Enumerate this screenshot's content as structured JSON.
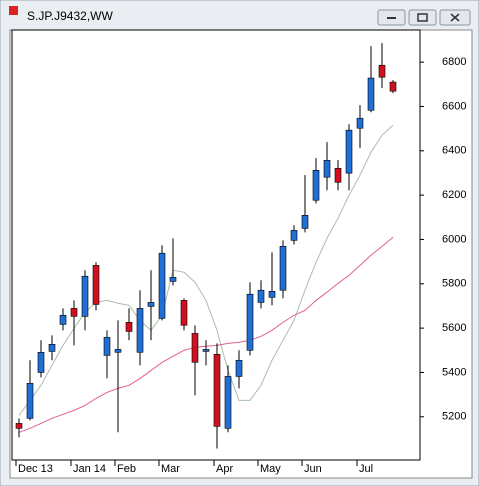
{
  "chart_data": {
    "type": "candlestick",
    "title": "S.JP.J9432,WW",
    "categories": [
      "Dec 13",
      null,
      null,
      null,
      null,
      "Jan 14",
      null,
      null,
      null,
      "Feb",
      null,
      null,
      null,
      "Mar",
      null,
      null,
      null,
      null,
      "Apr",
      null,
      null,
      null,
      "May",
      null,
      null,
      null,
      "Jun",
      null,
      null,
      null,
      null,
      "Jul",
      null,
      null,
      null
    ],
    "open": [
      5170,
      5193,
      5400,
      5495,
      5617,
      5689,
      5653,
      5883,
      5477,
      5491,
      5626,
      5491,
      5698,
      5644,
      5811,
      5725,
      5576,
      5495,
      5482,
      5148,
      5382,
      5500,
      5716,
      5739,
      5771,
      5996,
      6050,
      6177,
      6281,
      6321,
      6299,
      6502,
      6583,
      6786,
      6710
    ],
    "high": [
      5193,
      5455,
      5545,
      5567,
      5689,
      5725,
      5861,
      5897,
      5590,
      5635,
      5689,
      5771,
      5861,
      5974,
      6005,
      5734,
      5612,
      5545,
      5531,
      5432,
      5500,
      5807,
      5816,
      5942,
      5996,
      6064,
      6290,
      6367,
      6439,
      6358,
      6520,
      6606,
      6872,
      6886,
      6719
    ],
    "low": [
      5107,
      5184,
      5378,
      5455,
      5590,
      5522,
      5590,
      5680,
      5373,
      5130,
      5545,
      5432,
      5545,
      5635,
      5793,
      5590,
      5297,
      5432,
      5057,
      5130,
      5328,
      5477,
      5689,
      5703,
      5734,
      5978,
      6032,
      6163,
      6222,
      6222,
      6222,
      6412,
      6574,
      6683,
      6660
    ],
    "close": [
      5148,
      5351,
      5491,
      5527,
      5658,
      5653,
      5834,
      5707,
      5558,
      5504,
      5585,
      5689,
      5716,
      5938,
      5829,
      5613,
      5446,
      5504,
      5157,
      5382,
      5455,
      5753,
      5771,
      5766,
      5969,
      6041,
      6109,
      6312,
      6357,
      6258,
      6493,
      6547,
      6728,
      6732,
      6669
    ],
    "up_color": "#1f6fd6",
    "down_color": "#d0101e",
    "overlays": [
      {
        "color": "#a8c0a8",
        "values": [
          5206,
          5274,
          5342,
          5432,
          5522,
          5599,
          5671,
          5716,
          5725,
          5712,
          5703,
          5635,
          5590,
          5658,
          5861,
          5852,
          5807,
          5725,
          5590,
          5409,
          5274,
          5274,
          5342,
          5455,
          5545,
          5635,
          5771,
          5897,
          6005,
          6096,
          6199,
          6290,
          6394,
          6470,
          6516
        ]
      },
      {
        "color": "#e0608a",
        "values": [
          5130,
          5148,
          5170,
          5193,
          5211,
          5229,
          5251,
          5283,
          5310,
          5328,
          5342,
          5373,
          5409,
          5445,
          5473,
          5500,
          5513,
          5518,
          5522,
          5531,
          5536,
          5545,
          5563,
          5590,
          5626,
          5658,
          5680,
          5725,
          5762,
          5802,
          5838,
          5883,
          5929,
          5969,
          6010
        ]
      }
    ],
    "ylim": [
      5005,
      6945
    ],
    "yticks": [
      5200,
      5400,
      5600,
      5800,
      6000,
      6200,
      6400,
      6600,
      6800
    ],
    "grid": false
  }
}
